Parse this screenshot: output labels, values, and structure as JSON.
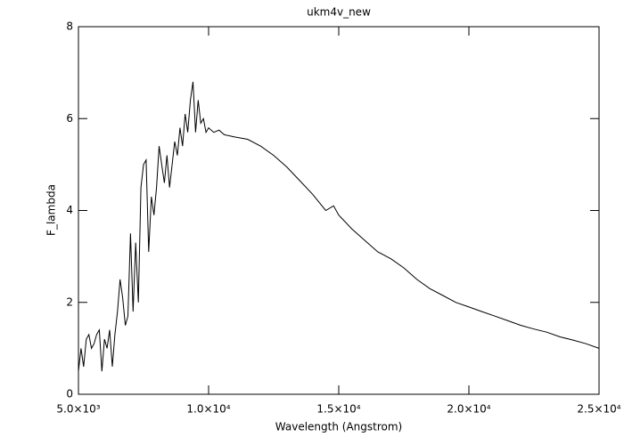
{
  "chart_data": {
    "type": "line",
    "title": "ukm4v_new",
    "x_label": "Wavelength (Angstrom)",
    "y_label": "F_lambda",
    "color": "#000000",
    "x": [
      5000,
      5100,
      5200,
      5300,
      5400,
      5500,
      5600,
      5700,
      5800,
      5900,
      6000,
      6100,
      6200,
      6300,
      6400,
      6500,
      6600,
      6700,
      6800,
      6900,
      7000,
      7100,
      7200,
      7300,
      7400,
      7500,
      7600,
      7700,
      7800,
      7900,
      8000,
      8100,
      8200,
      8300,
      8400,
      8500,
      8600,
      8700,
      8800,
      8900,
      9000,
      9100,
      9200,
      9300,
      9400,
      9500,
      9600,
      9700,
      9800,
      9900,
      10000,
      10200,
      10400,
      10600,
      11000,
      11500,
      12000,
      12500,
      13000,
      13500,
      14000,
      14500,
      14800,
      15000,
      15500,
      16000,
      16500,
      17000,
      17500,
      18000,
      18500,
      19000,
      19500,
      20000,
      20500,
      21000,
      21500,
      22000,
      22500,
      23000,
      23500,
      24000,
      24500,
      25000
    ],
    "values": [
      0.5,
      1.0,
      0.6,
      1.2,
      1.3,
      1.0,
      1.1,
      1.3,
      1.4,
      0.5,
      1.2,
      1.0,
      1.4,
      0.6,
      1.3,
      1.8,
      2.5,
      2.1,
      1.5,
      1.7,
      3.5,
      1.8,
      3.3,
      2.0,
      4.5,
      5.0,
      5.1,
      3.1,
      4.3,
      3.9,
      4.5,
      5.4,
      5.0,
      4.6,
      5.2,
      4.5,
      5.0,
      5.5,
      5.2,
      5.8,
      5.4,
      6.1,
      5.7,
      6.4,
      6.8,
      5.7,
      6.4,
      5.9,
      6.0,
      5.7,
      5.8,
      5.7,
      5.75,
      5.65,
      5.6,
      5.55,
      5.4,
      5.2,
      4.95,
      4.65,
      4.35,
      4.0,
      4.1,
      3.9,
      3.6,
      3.35,
      3.1,
      2.95,
      2.75,
      2.5,
      2.3,
      2.15,
      2.0,
      1.9,
      1.8,
      1.7,
      1.6,
      1.5,
      1.42,
      1.35,
      1.25,
      1.18,
      1.1,
      1.0
    ],
    "xlim": [
      5000,
      25000
    ],
    "xticks": [
      {
        "value": 5000,
        "label": "5.0×10³"
      },
      {
        "value": 10000,
        "label": "1.0×10⁴"
      },
      {
        "value": 15000,
        "label": "1.5×10⁴"
      },
      {
        "value": 20000,
        "label": "2.0×10⁴"
      },
      {
        "value": 25000,
        "label": "2.5×10⁴"
      }
    ],
    "ylim": [
      0,
      8
    ],
    "yticks": [
      0,
      2,
      4,
      6,
      8
    ]
  }
}
